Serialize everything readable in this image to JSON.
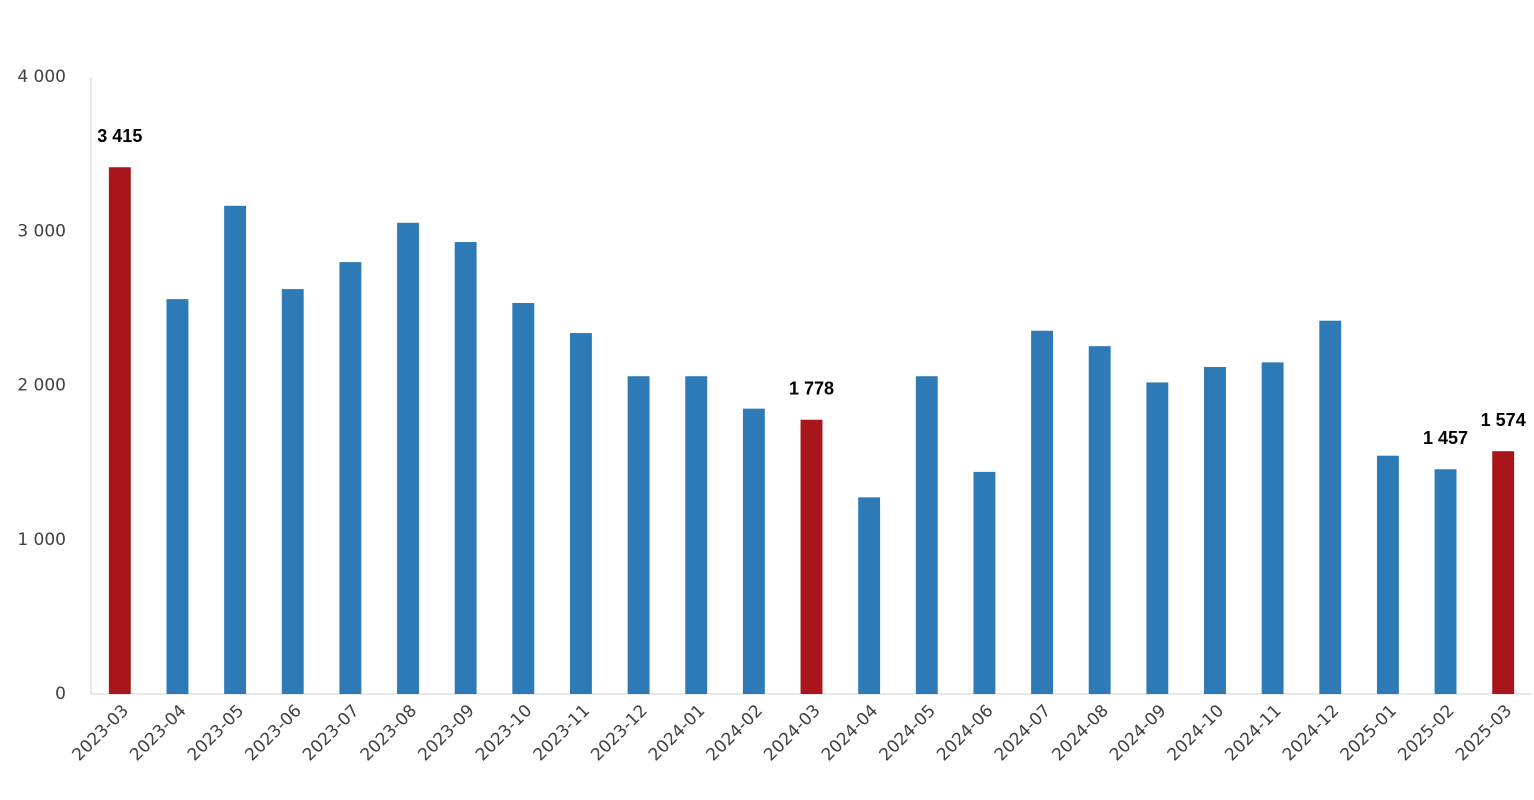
{
  "chart_data": {
    "type": "bar",
    "categories": [
      "2023-03",
      "2023-04",
      "2023-05",
      "2023-06",
      "2023-07",
      "2023-08",
      "2023-09",
      "2023-10",
      "2023-11",
      "2023-12",
      "2024-01",
      "2024-02",
      "2024-03",
      "2024-04",
      "2024-05",
      "2024-06",
      "2024-07",
      "2024-08",
      "2024-09",
      "2024-10",
      "2024-11",
      "2024-12",
      "2025-01",
      "2025-02",
      "2025-03"
    ],
    "values": [
      3415,
      2560,
      3165,
      2625,
      2800,
      3055,
      2930,
      2535,
      2340,
      2060,
      2060,
      1850,
      1778,
      1275,
      2060,
      1440,
      2355,
      2255,
      2020,
      2120,
      2150,
      2420,
      1545,
      1457,
      1574
    ],
    "value_labels": [
      "3 415",
      null,
      null,
      null,
      null,
      null,
      null,
      null,
      null,
      null,
      null,
      null,
      "1 778",
      null,
      null,
      null,
      null,
      null,
      null,
      null,
      null,
      null,
      null,
      "1 457",
      "1 574"
    ],
    "colors": [
      "#a8161c",
      "#2e7ab6",
      "#2e7ab6",
      "#2e7ab6",
      "#2e7ab6",
      "#2e7ab6",
      "#2e7ab6",
      "#2e7ab6",
      "#2e7ab6",
      "#2e7ab6",
      "#2e7ab6",
      "#2e7ab6",
      "#a8161c",
      "#2e7ab6",
      "#2e7ab6",
      "#2e7ab6",
      "#2e7ab6",
      "#2e7ab6",
      "#2e7ab6",
      "#2e7ab6",
      "#2e7ab6",
      "#2e7ab6",
      "#2e7ab6",
      "#2e7ab6",
      "#a8161c"
    ],
    "ylim": [
      0,
      4000
    ],
    "yticks": [
      0,
      {
        "value": 1000,
        "label": "1 000"
      },
      {
        "value": 2000,
        "label": "2 000"
      },
      {
        "value": 3000,
        "label": "3 000"
      },
      {
        "value": 4000,
        "label": "4 000"
      }
    ],
    "grid": false
  }
}
